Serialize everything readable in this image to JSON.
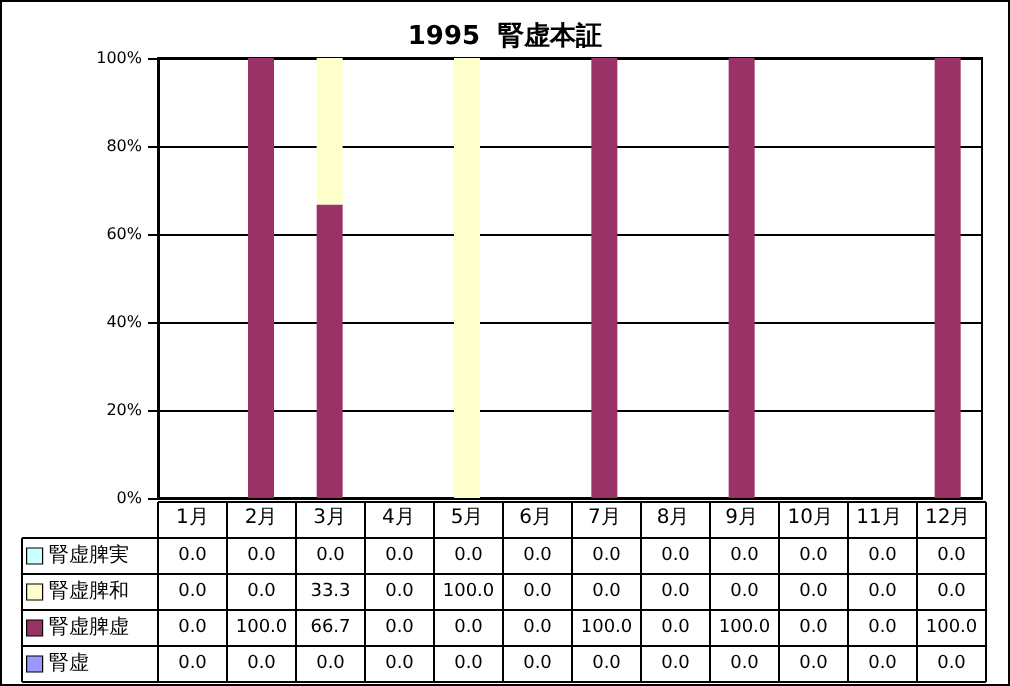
{
  "chart_data": {
    "type": "bar",
    "title": "1995  腎虚本証",
    "stacked": true,
    "data_labels": true,
    "grid": "y",
    "legend": "bottom left",
    "categories": [
      "1月",
      "2月",
      "3月",
      "4月",
      "5月",
      "6月",
      "7月",
      "8月",
      "9月",
      "10月",
      "11月",
      "12月"
    ],
    "ylim": [
      0,
      100
    ],
    "yticks": [
      {
        "value": 0,
        "label": "0%"
      },
      {
        "value": 20,
        "label": "20%"
      },
      {
        "value": 40,
        "label": "40%"
      },
      {
        "value": 60,
        "label": "60%"
      },
      {
        "value": 80,
        "label": "80%"
      },
      {
        "value": 100,
        "label": "100%"
      }
    ],
    "series": [
      {
        "name": "腎虚",
        "color": "#9999ff",
        "values": [
          0,
          0,
          0,
          0,
          0,
          0,
          0,
          0,
          0,
          0,
          0,
          0
        ],
        "value_labels": [
          "0.0",
          "0.0",
          "0.0",
          "0.0",
          "0.0",
          "0.0",
          "0.0",
          "0.0",
          "0.0",
          "0.0",
          "0.0",
          "0.0"
        ]
      },
      {
        "name": "腎虚脾虚",
        "color": "#993366",
        "values": [
          0,
          100,
          66.7,
          0,
          0,
          0,
          100,
          0,
          100,
          0,
          0,
          100
        ],
        "value_labels": [
          "0.0",
          "100.0",
          "66.7",
          "0.0",
          "0.0",
          "0.0",
          "100.0",
          "0.0",
          "100.0",
          "0.0",
          "0.0",
          "100.0"
        ]
      },
      {
        "name": "腎虚脾和",
        "color": "#ffffcc",
        "values": [
          0,
          0,
          33.3,
          0,
          100,
          0,
          0,
          0,
          0,
          0,
          0,
          0
        ],
        "value_labels": [
          "0.0",
          "0.0",
          "33.3",
          "0.0",
          "100.0",
          "0.0",
          "0.0",
          "0.0",
          "0.0",
          "0.0",
          "0.0",
          "0.0"
        ]
      },
      {
        "name": "腎虚脾実",
        "color": "#ccffff",
        "values": [
          0,
          0,
          0,
          0,
          0,
          0,
          0,
          0,
          0,
          0,
          0,
          0
        ],
        "value_labels": [
          "0.0",
          "0.0",
          "0.0",
          "0.0",
          "0.0",
          "0.0",
          "0.0",
          "0.0",
          "0.0",
          "0.0",
          "0.0",
          "0.0"
        ]
      }
    ]
  }
}
